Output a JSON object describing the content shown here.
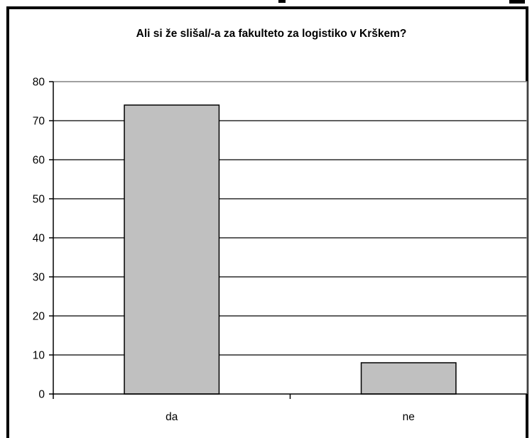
{
  "chart_data": {
    "type": "bar",
    "title": "Ali si že slišal/-a za fakulteto za logistiko v Krškem?",
    "categories": [
      "da",
      "ne"
    ],
    "values": [
      74,
      8
    ],
    "ylim": [
      0,
      80
    ],
    "yticks": [
      0,
      10,
      20,
      30,
      40,
      50,
      60,
      70,
      80
    ],
    "grid": true,
    "legend": "none",
    "bar_color": "#c0c0c0",
    "plot_background": "#ffffff",
    "plot_border_color": "#808080"
  }
}
